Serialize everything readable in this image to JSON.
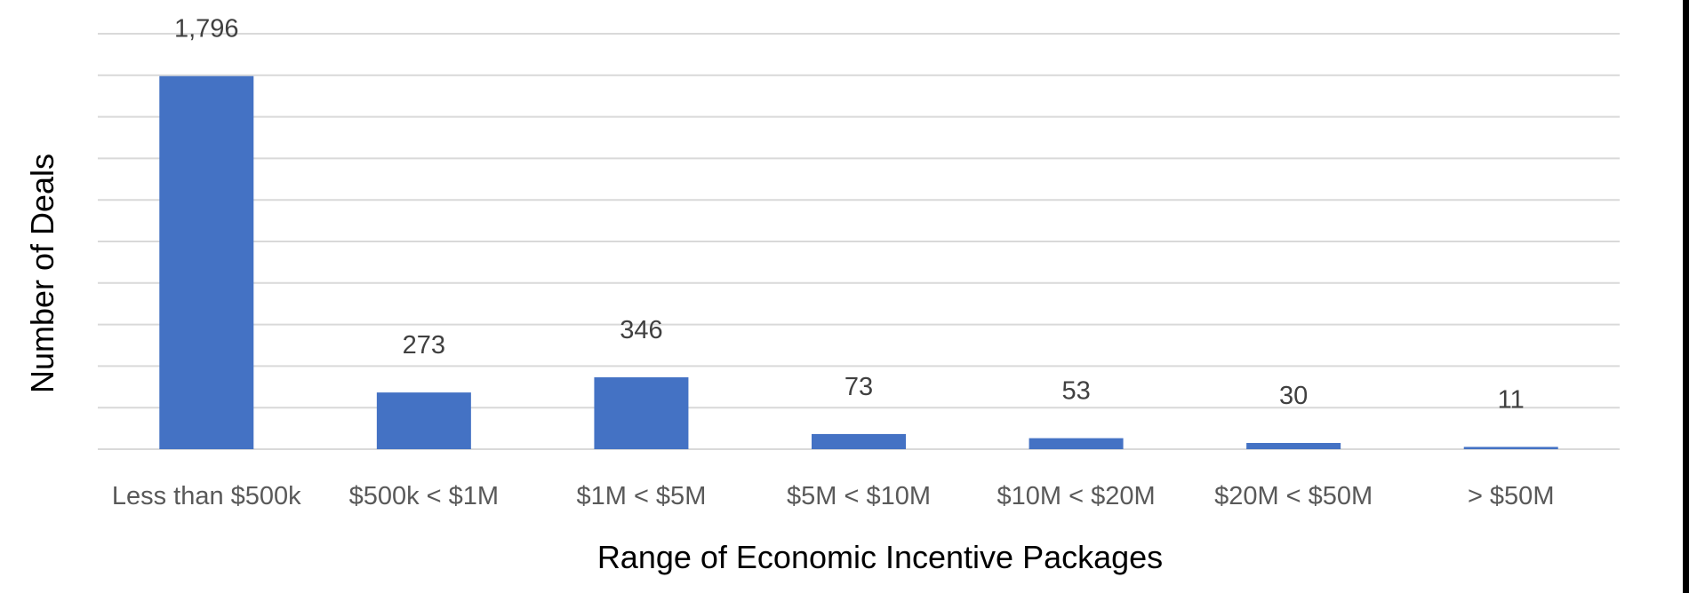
{
  "chart_data": {
    "type": "bar",
    "title": "",
    "xlabel": "Range of Economic Incentive Packages",
    "ylabel": "Number of Deals",
    "categories": [
      "Less than $500k",
      "$500k < $1M",
      "$1M < $5M",
      "$5M < $10M",
      "$10M < $20M",
      "$20M < $50M",
      "> $50M"
    ],
    "values": [
      1796,
      273,
      346,
      73,
      53,
      30,
      11
    ],
    "data_labels": [
      "1,796",
      "273",
      "346",
      "73",
      "53",
      "30",
      "11"
    ],
    "ylim": [
      0,
      2000
    ],
    "y_gridline_step": 200,
    "y_tick_labels_visible": false,
    "grid": true,
    "legend": "none",
    "colors": {
      "bar": "#4472c4",
      "grid": "#d9d9d9",
      "tick_text": "#595959",
      "label_text": "#404040",
      "title_text": "#000000"
    }
  }
}
